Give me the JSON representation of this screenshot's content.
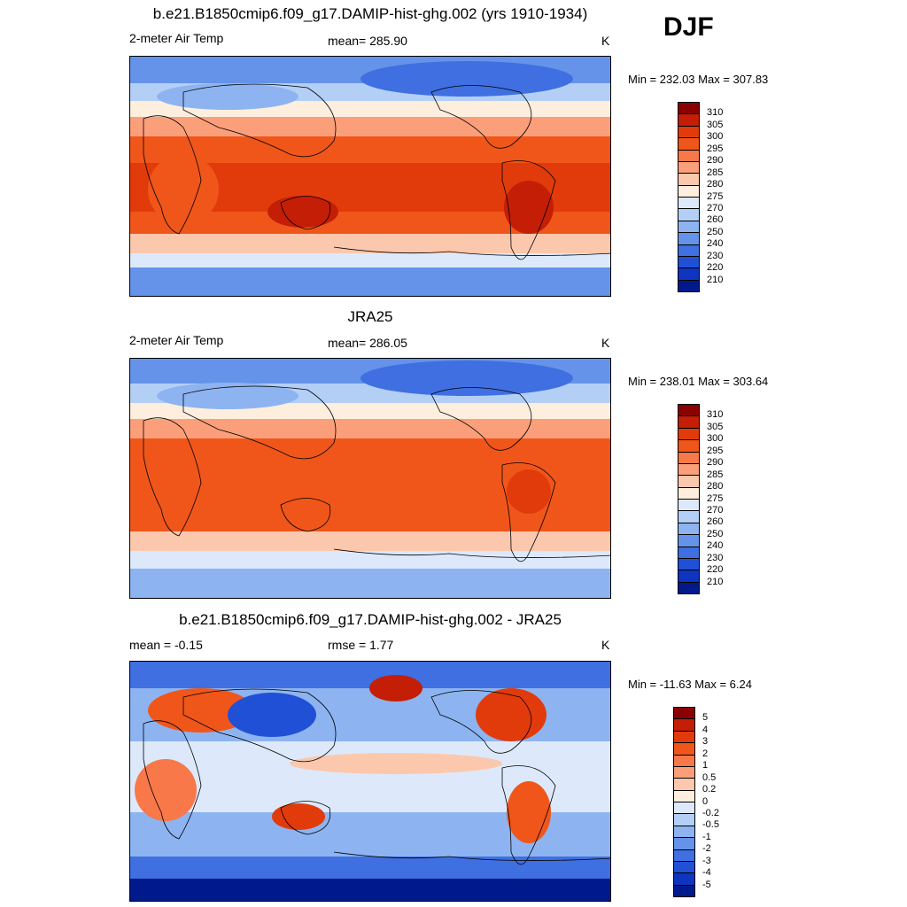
{
  "season": "DJF",
  "colors": {
    "abs_scale": [
      "#8b0000",
      "#c41e06",
      "#e23b0b",
      "#f0561a",
      "#f8784a",
      "#fb9f7b",
      "#fcc8ad",
      "#fdeede",
      "#dde9fb",
      "#b4cff6",
      "#8db4f0",
      "#6593ea",
      "#3f6fe0",
      "#2050d6",
      "#0f34c0",
      "#001a8c"
    ],
    "diff_scale": [
      "#8b0000",
      "#c41e06",
      "#e23b0b",
      "#f0561a",
      "#f8784a",
      "#fb9f7b",
      "#fcc8ad",
      "#fdeede",
      "#dde9fb",
      "#b4cff6",
      "#8db4f0",
      "#6593ea",
      "#3f6fe0",
      "#2050d6",
      "#0f34c0",
      "#001a8c"
    ]
  },
  "chart_data": [
    {
      "type": "heatmap",
      "title": "b.e21.B1850cmip6.f09_g17.DAMIP-hist-ghg.002 (yrs 1910-1934)",
      "left_label": "2-meter Air Temp",
      "center_label": "mean= 285.90",
      "right_label": "K",
      "minmax": "Min = 232.03 Max = 307.83",
      "legend_ticks": [
        "310",
        "305",
        "300",
        "295",
        "290",
        "285",
        "280",
        "275",
        "270",
        "260",
        "250",
        "240",
        "230",
        "220",
        "210"
      ]
    },
    {
      "type": "heatmap",
      "title": "JRA25",
      "left_label": "2-meter Air Temp",
      "center_label": "mean= 286.05",
      "right_label": "K",
      "minmax": "Min = 238.01 Max = 303.64",
      "legend_ticks": [
        "310",
        "305",
        "300",
        "295",
        "290",
        "285",
        "280",
        "275",
        "270",
        "260",
        "250",
        "240",
        "230",
        "220",
        "210"
      ]
    },
    {
      "type": "heatmap",
      "title": "b.e21.B1850cmip6.f09_g17.DAMIP-hist-ghg.002 - JRA25",
      "left_label": "mean =  -0.15",
      "center_label": "rmse =    1.77",
      "right_label": "K",
      "minmax": "Min = -11.63 Max =   6.24",
      "legend_ticks": [
        "5",
        "4",
        "3",
        "2",
        "1",
        "0.5",
        "0.2",
        "0",
        "-0.2",
        "-0.5",
        "-1",
        "-2",
        "-3",
        "-4",
        "-5"
      ]
    }
  ]
}
